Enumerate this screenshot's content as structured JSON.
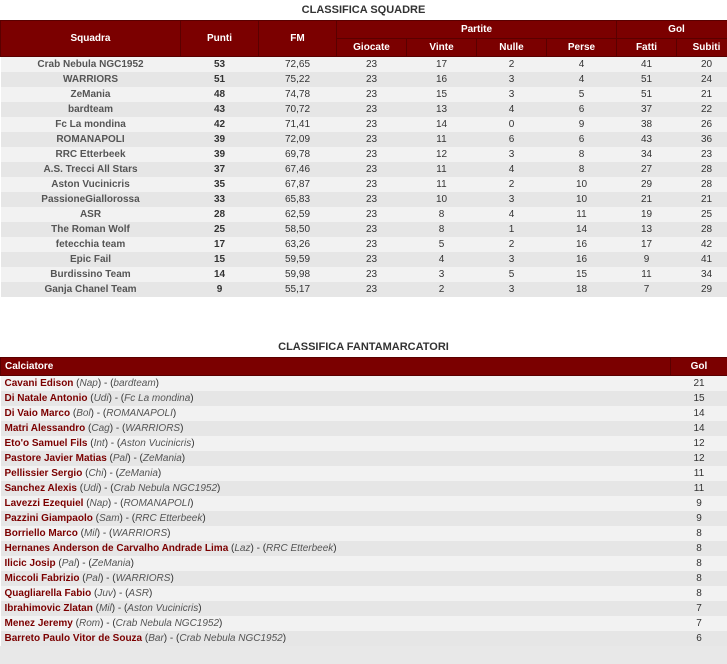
{
  "standings": {
    "title": "CLASSIFICA SQUADRE",
    "headers": {
      "squadra": "Squadra",
      "punti": "Punti",
      "fm": "FM",
      "partite": "Partite",
      "giocate": "Giocate",
      "vinte": "Vinte",
      "nulle": "Nulle",
      "perse": "Perse",
      "gol": "Gol",
      "fatti": "Fatti",
      "subiti": "Subiti"
    },
    "rows": [
      {
        "squadra": "Crab Nebula NGC1952",
        "punti": "53",
        "fm": "72,65",
        "giocate": "23",
        "vinte": "17",
        "nulle": "2",
        "perse": "4",
        "fatti": "41",
        "subiti": "20"
      },
      {
        "squadra": "WARRIORS",
        "punti": "51",
        "fm": "75,22",
        "giocate": "23",
        "vinte": "16",
        "nulle": "3",
        "perse": "4",
        "fatti": "51",
        "subiti": "24"
      },
      {
        "squadra": "ZeMania",
        "punti": "48",
        "fm": "74,78",
        "giocate": "23",
        "vinte": "15",
        "nulle": "3",
        "perse": "5",
        "fatti": "51",
        "subiti": "21"
      },
      {
        "squadra": "bardteam",
        "punti": "43",
        "fm": "70,72",
        "giocate": "23",
        "vinte": "13",
        "nulle": "4",
        "perse": "6",
        "fatti": "37",
        "subiti": "22"
      },
      {
        "squadra": "Fc La mondina",
        "punti": "42",
        "fm": "71,41",
        "giocate": "23",
        "vinte": "14",
        "nulle": "0",
        "perse": "9",
        "fatti": "38",
        "subiti": "26"
      },
      {
        "squadra": "ROMANAPOLI",
        "punti": "39",
        "fm": "72,09",
        "giocate": "23",
        "vinte": "11",
        "nulle": "6",
        "perse": "6",
        "fatti": "43",
        "subiti": "36"
      },
      {
        "squadra": "RRC Etterbeek",
        "punti": "39",
        "fm": "69,78",
        "giocate": "23",
        "vinte": "12",
        "nulle": "3",
        "perse": "8",
        "fatti": "34",
        "subiti": "23"
      },
      {
        "squadra": "A.S. Trecci All Stars",
        "punti": "37",
        "fm": "67,46",
        "giocate": "23",
        "vinte": "11",
        "nulle": "4",
        "perse": "8",
        "fatti": "27",
        "subiti": "28"
      },
      {
        "squadra": "Aston Vucinicris",
        "punti": "35",
        "fm": "67,87",
        "giocate": "23",
        "vinte": "11",
        "nulle": "2",
        "perse": "10",
        "fatti": "29",
        "subiti": "28"
      },
      {
        "squadra": "PassioneGiallorossa",
        "punti": "33",
        "fm": "65,83",
        "giocate": "23",
        "vinte": "10",
        "nulle": "3",
        "perse": "10",
        "fatti": "21",
        "subiti": "21"
      },
      {
        "squadra": "ASR",
        "punti": "28",
        "fm": "62,59",
        "giocate": "23",
        "vinte": "8",
        "nulle": "4",
        "perse": "11",
        "fatti": "19",
        "subiti": "25"
      },
      {
        "squadra": "The Roman Wolf",
        "punti": "25",
        "fm": "58,50",
        "giocate": "23",
        "vinte": "8",
        "nulle": "1",
        "perse": "14",
        "fatti": "13",
        "subiti": "28"
      },
      {
        "squadra": "fetecchia team",
        "punti": "17",
        "fm": "63,26",
        "giocate": "23",
        "vinte": "5",
        "nulle": "2",
        "perse": "16",
        "fatti": "17",
        "subiti": "42"
      },
      {
        "squadra": "Epic Fail",
        "punti": "15",
        "fm": "59,59",
        "giocate": "23",
        "vinte": "4",
        "nulle": "3",
        "perse": "16",
        "fatti": "9",
        "subiti": "41"
      },
      {
        "squadra": "Burdissino Team",
        "punti": "14",
        "fm": "59,98",
        "giocate": "23",
        "vinte": "3",
        "nulle": "5",
        "perse": "15",
        "fatti": "11",
        "subiti": "34"
      },
      {
        "squadra": "Ganja Chanel Team",
        "punti": "9",
        "fm": "55,17",
        "giocate": "23",
        "vinte": "2",
        "nulle": "3",
        "perse": "18",
        "fatti": "7",
        "subiti": "29"
      }
    ]
  },
  "scorers": {
    "title": "CLASSIFICA FANTAMARCATORI",
    "headers": {
      "calciatore": "Calciatore",
      "gol": "Gol"
    },
    "rows": [
      {
        "player": "Cavani Edison",
        "club": "Nap",
        "team": "bardteam",
        "gol": "21"
      },
      {
        "player": "Di Natale Antonio",
        "club": "Udi",
        "team": "Fc La mondina",
        "gol": "15"
      },
      {
        "player": "Di Vaio Marco",
        "club": "Bol",
        "team": "ROMANAPOLI",
        "gol": "14"
      },
      {
        "player": "Matri Alessandro",
        "club": "Cag",
        "team": "WARRIORS",
        "gol": "14"
      },
      {
        "player": "Eto'o Samuel Fils",
        "club": "Int",
        "team": "Aston Vucinicris",
        "gol": "12"
      },
      {
        "player": "Pastore Javier Matias",
        "club": "Pal",
        "team": "ZeMania",
        "gol": "12"
      },
      {
        "player": "Pellissier Sergio",
        "club": "Chi",
        "team": "ZeMania",
        "gol": "11"
      },
      {
        "player": "Sanchez Alexis",
        "club": "Udi",
        "team": "Crab Nebula NGC1952",
        "gol": "11"
      },
      {
        "player": "Lavezzi Ezequiel",
        "club": "Nap",
        "team": "ROMANAPOLI",
        "gol": "9"
      },
      {
        "player": "Pazzini Giampaolo",
        "club": "Sam",
        "team": "RRC Etterbeek",
        "gol": "9"
      },
      {
        "player": "Borriello Marco",
        "club": "Mil",
        "team": "WARRIORS",
        "gol": "8"
      },
      {
        "player": "Hernanes Anderson de Carvalho Andrade Lima",
        "club": "Laz",
        "team": "RRC Etterbeek",
        "gol": "8"
      },
      {
        "player": "Ilicic Josip",
        "club": "Pal",
        "team": "ZeMania",
        "gol": "8"
      },
      {
        "player": "Miccoli Fabrizio",
        "club": "Pal",
        "team": "WARRIORS",
        "gol": "8"
      },
      {
        "player": "Quagliarella Fabio",
        "club": "Juv",
        "team": "ASR",
        "gol": "8"
      },
      {
        "player": "Ibrahimovic Zlatan",
        "club": "Mil",
        "team": "Aston Vucinicris",
        "gol": "7"
      },
      {
        "player": "Menez Jeremy",
        "club": "Rom",
        "team": "Crab Nebula NGC1952",
        "gol": "7"
      },
      {
        "player": "Barreto Paulo Vitor de Souza",
        "club": "Bar",
        "team": "Crab Nebula NGC1952",
        "gol": "6"
      }
    ]
  }
}
